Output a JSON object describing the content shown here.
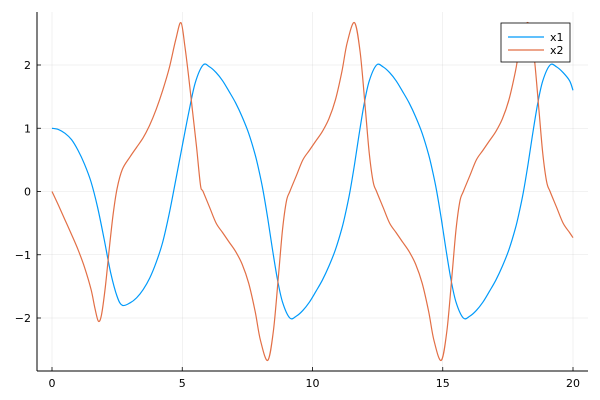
{
  "chart_data": {
    "type": "line",
    "title": "",
    "xlabel": "",
    "ylabel": "",
    "xlim": [
      -0.5,
      20.5
    ],
    "ylim": [
      -2.8,
      2.85
    ],
    "xticks": [
      0,
      5,
      10,
      15,
      20
    ],
    "yticks": [
      -2,
      -1,
      0,
      1,
      2
    ],
    "xtick_labels": [
      "0",
      "5",
      "10",
      "15",
      "20"
    ],
    "ytick_labels": [
      "−2",
      "−1",
      "0",
      "1",
      "2"
    ],
    "grid": true,
    "legend_position": "top-right",
    "series": [
      {
        "name": "x1",
        "color": "#009AFA",
        "points": [
          [
            0,
            1
          ],
          [
            0.25,
            0.98
          ],
          [
            0.5,
            0.92
          ],
          [
            0.75,
            0.82
          ],
          [
            1,
            0.65
          ],
          [
            1.25,
            0.43
          ],
          [
            1.5,
            0.15
          ],
          [
            1.75,
            -0.25
          ],
          [
            2,
            -0.75
          ],
          [
            2.25,
            -1.28
          ],
          [
            2.5,
            -1.66
          ],
          [
            2.7,
            -1.8
          ],
          [
            3,
            -1.76
          ],
          [
            3.25,
            -1.68
          ],
          [
            3.5,
            -1.55
          ],
          [
            3.75,
            -1.37
          ],
          [
            4,
            -1.12
          ],
          [
            4.25,
            -0.8
          ],
          [
            4.5,
            -0.35
          ],
          [
            4.75,
            0.18
          ],
          [
            5,
            0.72
          ],
          [
            5.25,
            1.25
          ],
          [
            5.5,
            1.72
          ],
          [
            5.8,
            2.0
          ],
          [
            6.05,
            1.97
          ],
          [
            6.3,
            1.88
          ],
          [
            6.55,
            1.75
          ],
          [
            6.8,
            1.58
          ],
          [
            7.05,
            1.4
          ],
          [
            7.3,
            1.18
          ],
          [
            7.55,
            0.92
          ],
          [
            7.8,
            0.58
          ],
          [
            7.95,
            0.32
          ],
          [
            8.1,
            0.02
          ],
          [
            8.28,
            -0.42
          ],
          [
            8.45,
            -0.88
          ],
          [
            8.65,
            -1.38
          ],
          [
            8.85,
            -1.75
          ],
          [
            9.13,
            -2.0
          ],
          [
            9.38,
            -1.97
          ],
          [
            9.63,
            -1.88
          ],
          [
            9.88,
            -1.75
          ],
          [
            10.13,
            -1.58
          ],
          [
            10.38,
            -1.4
          ],
          [
            10.63,
            -1.18
          ],
          [
            10.88,
            -0.92
          ],
          [
            11.13,
            -0.58
          ],
          [
            11.28,
            -0.32
          ],
          [
            11.43,
            -0.02
          ],
          [
            11.61,
            0.42
          ],
          [
            11.78,
            0.88
          ],
          [
            11.98,
            1.38
          ],
          [
            12.18,
            1.75
          ],
          [
            12.46,
            2.0
          ],
          [
            12.71,
            1.97
          ],
          [
            12.96,
            1.88
          ],
          [
            13.21,
            1.75
          ],
          [
            13.46,
            1.58
          ],
          [
            13.71,
            1.4
          ],
          [
            13.96,
            1.18
          ],
          [
            14.21,
            0.92
          ],
          [
            14.46,
            0.58
          ],
          [
            14.61,
            0.32
          ],
          [
            14.76,
            0.02
          ],
          [
            14.94,
            -0.42
          ],
          [
            15.11,
            -0.88
          ],
          [
            15.31,
            -1.38
          ],
          [
            15.51,
            -1.75
          ],
          [
            15.79,
            -2.0
          ],
          [
            16.04,
            -1.97
          ],
          [
            16.29,
            -1.88
          ],
          [
            16.54,
            -1.75
          ],
          [
            16.79,
            -1.58
          ],
          [
            17.04,
            -1.4
          ],
          [
            17.29,
            -1.18
          ],
          [
            17.54,
            -0.92
          ],
          [
            17.79,
            -0.58
          ],
          [
            17.94,
            -0.32
          ],
          [
            18.09,
            -0.02
          ],
          [
            18.27,
            0.42
          ],
          [
            18.44,
            0.88
          ],
          [
            18.64,
            1.38
          ],
          [
            18.84,
            1.75
          ],
          [
            19.12,
            2.0
          ],
          [
            19.37,
            1.97
          ],
          [
            19.62,
            1.88
          ],
          [
            19.87,
            1.75
          ],
          [
            20,
            1.6
          ]
        ]
      },
      {
        "name": "x2",
        "color": "#E26F46",
        "points": [
          [
            0,
            0
          ],
          [
            0.25,
            -0.22
          ],
          [
            0.5,
            -0.45
          ],
          [
            0.75,
            -0.68
          ],
          [
            1,
            -0.92
          ],
          [
            1.25,
            -1.2
          ],
          [
            1.5,
            -1.55
          ],
          [
            1.65,
            -1.85
          ],
          [
            1.78,
            -2.05
          ],
          [
            1.9,
            -1.95
          ],
          [
            2.05,
            -1.5
          ],
          [
            2.2,
            -0.9
          ],
          [
            2.35,
            -0.35
          ],
          [
            2.5,
            0.05
          ],
          [
            2.7,
            0.35
          ],
          [
            3,
            0.55
          ],
          [
            3.25,
            0.7
          ],
          [
            3.5,
            0.85
          ],
          [
            3.75,
            1.05
          ],
          [
            4,
            1.3
          ],
          [
            4.25,
            1.6
          ],
          [
            4.5,
            1.95
          ],
          [
            4.75,
            2.4
          ],
          [
            4.95,
            2.67
          ],
          [
            5.1,
            2.3
          ],
          [
            5.25,
            1.8
          ],
          [
            5.4,
            1.25
          ],
          [
            5.55,
            0.7
          ],
          [
            5.7,
            0.1
          ],
          [
            5.8,
            0
          ],
          [
            6.05,
            -0.25
          ],
          [
            6.3,
            -0.5
          ],
          [
            6.55,
            -0.65
          ],
          [
            6.8,
            -0.8
          ],
          [
            7.05,
            -0.95
          ],
          [
            7.3,
            -1.15
          ],
          [
            7.55,
            -1.45
          ],
          [
            7.8,
            -1.9
          ],
          [
            8.0,
            -2.35
          ],
          [
            8.28,
            -2.67
          ],
          [
            8.5,
            -2.2
          ],
          [
            8.7,
            -1.3
          ],
          [
            8.85,
            -0.6
          ],
          [
            9.0,
            -0.15
          ],
          [
            9.13,
            0
          ],
          [
            9.38,
            0.25
          ],
          [
            9.63,
            0.5
          ],
          [
            9.88,
            0.65
          ],
          [
            10.13,
            0.8
          ],
          [
            10.38,
            0.95
          ],
          [
            10.63,
            1.15
          ],
          [
            10.88,
            1.45
          ],
          [
            11.13,
            1.9
          ],
          [
            11.33,
            2.35
          ],
          [
            11.61,
            2.67
          ],
          [
            11.83,
            2.2
          ],
          [
            12.03,
            1.3
          ],
          [
            12.18,
            0.6
          ],
          [
            12.33,
            0.15
          ],
          [
            12.46,
            0
          ],
          [
            12.71,
            -0.25
          ],
          [
            12.96,
            -0.5
          ],
          [
            13.21,
            -0.65
          ],
          [
            13.46,
            -0.8
          ],
          [
            13.71,
            -0.95
          ],
          [
            13.96,
            -1.15
          ],
          [
            14.21,
            -1.45
          ],
          [
            14.46,
            -1.9
          ],
          [
            14.66,
            -2.35
          ],
          [
            14.94,
            -2.67
          ],
          [
            15.16,
            -2.2
          ],
          [
            15.36,
            -1.3
          ],
          [
            15.51,
            -0.6
          ],
          [
            15.66,
            -0.15
          ],
          [
            15.79,
            0
          ],
          [
            16.04,
            0.25
          ],
          [
            16.29,
            0.5
          ],
          [
            16.54,
            0.65
          ],
          [
            16.79,
            0.8
          ],
          [
            17.04,
            0.95
          ],
          [
            17.29,
            1.15
          ],
          [
            17.54,
            1.45
          ],
          [
            17.79,
            1.9
          ],
          [
            17.99,
            2.35
          ],
          [
            18.27,
            2.67
          ],
          [
            18.49,
            2.2
          ],
          [
            18.69,
            1.3
          ],
          [
            18.84,
            0.6
          ],
          [
            18.99,
            0.15
          ],
          [
            19.12,
            0
          ],
          [
            19.37,
            -0.25
          ],
          [
            19.62,
            -0.5
          ],
          [
            19.87,
            -0.65
          ],
          [
            20,
            -0.73
          ]
        ]
      }
    ]
  }
}
